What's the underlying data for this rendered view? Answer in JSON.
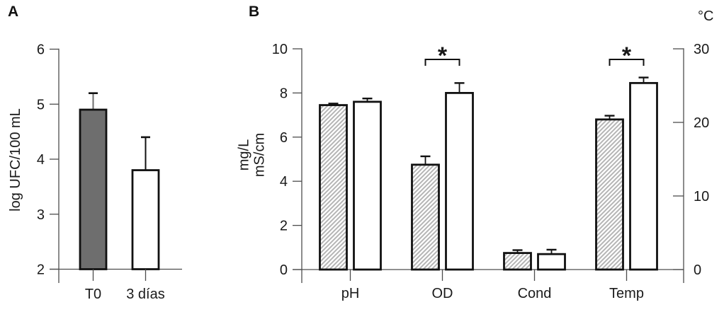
{
  "figure": {
    "panels": [
      {
        "label": "A",
        "ylabel": "log UFC/100 mL"
      },
      {
        "label": "B",
        "ylabel_line1": "mg/L",
        "ylabel_line2": "mS/cm",
        "right_axis_label": "°C"
      }
    ]
  },
  "colors": {
    "text": "#1a1a1a",
    "axis": "#4d4d4d",
    "bar_border": "#111111",
    "bar_gray": "#6e6e6e",
    "hatch_stroke": "#b5b5b5",
    "bar_white": "#ffffff"
  },
  "chart_data": [
    {
      "type": "bar",
      "panel": "A",
      "title": "",
      "xlabel": "",
      "ylabel": "log UFC/100 mL",
      "ylim": [
        2,
        6
      ],
      "yticks": [
        2,
        3,
        4,
        5,
        6
      ],
      "grid": false,
      "legend": "none",
      "categories": [
        "T0",
        "3 días"
      ],
      "series": [
        {
          "name": "bars",
          "values": [
            4.9,
            3.8
          ],
          "errors_plus": [
            0.3,
            0.6
          ],
          "fills": [
            "gray",
            "white"
          ]
        }
      ]
    },
    {
      "type": "bar",
      "panel": "B",
      "title": "",
      "xlabel": "",
      "ylabel": "mg/L / mS/cm",
      "ylim": [
        0,
        10
      ],
      "yticks": [
        0,
        2,
        4,
        6,
        8,
        10
      ],
      "grid": false,
      "legend": "none",
      "categories": [
        "pH",
        "OD",
        "Cond",
        "Temp"
      ],
      "series": [
        {
          "name": "hatched",
          "values": [
            7.45,
            4.75,
            0.75,
            6.8
          ],
          "errors_plus": [
            0.07,
            0.38,
            0.13,
            0.17
          ]
        },
        {
          "name": "open",
          "values": [
            7.6,
            8.0,
            0.7,
            8.45
          ],
          "errors_plus": [
            0.15,
            0.45,
            0.2,
            0.25
          ]
        }
      ],
      "right_axis": {
        "label": "°C",
        "ylim": [
          0,
          30
        ],
        "ticks": [
          0,
          10,
          20,
          30
        ]
      },
      "significance": [
        {
          "category": "OD",
          "label": "*"
        },
        {
          "category": "Temp",
          "label": "*"
        }
      ]
    }
  ]
}
